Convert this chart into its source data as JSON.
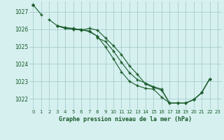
{
  "title": "Graphe pression niveau de la mer (hPa)",
  "background_color": "#d6f0f0",
  "grid_color": "#aecfcf",
  "line_color": "#1a5c2a",
  "xlim": [
    -0.5,
    23.5
  ],
  "ylim": [
    1021.4,
    1027.6
  ],
  "yticks": [
    1022,
    1023,
    1024,
    1025,
    1026,
    1027
  ],
  "xticks": [
    0,
    1,
    2,
    3,
    4,
    5,
    6,
    7,
    8,
    9,
    10,
    11,
    12,
    13,
    14,
    15,
    16,
    17,
    18,
    19,
    20,
    21,
    22,
    23
  ],
  "series": [
    [
      1027.4,
      1026.85,
      null,
      null,
      null,
      null,
      null,
      null,
      null,
      null,
      null,
      null,
      null,
      null,
      null,
      null,
      null,
      null,
      null,
      null,
      null,
      null,
      null,
      null
    ],
    [
      1027.4,
      null,
      null,
      1026.2,
      1026.05,
      1026.0,
      1026.0,
      1025.85,
      1025.6,
      1025.0,
      1024.3,
      1023.55,
      1023.0,
      1022.75,
      1022.6,
      1022.55,
      1022.1,
      1021.75,
      1021.75,
      1021.75,
      1021.95,
      1022.35,
      1023.15,
      null
    ],
    [
      1027.4,
      null,
      null,
      1026.2,
      1026.1,
      1026.05,
      1025.95,
      1026.05,
      1025.95,
      1025.5,
      1025.05,
      1024.55,
      1023.9,
      1023.4,
      1022.85,
      1022.65,
      1022.5,
      1021.75,
      1021.75,
      1021.75,
      1021.95,
      1022.35,
      1023.15,
      null
    ],
    [
      1027.4,
      null,
      1026.55,
      1026.2,
      1026.05,
      1026.0,
      1025.95,
      1025.9,
      1025.6,
      null,
      null,
      null,
      null,
      null,
      null,
      null,
      null,
      null,
      null,
      null,
      null,
      null,
      null,
      null
    ],
    [
      null,
      null,
      null,
      null,
      null,
      null,
      null,
      null,
      1025.5,
      1025.3,
      1024.75,
      1024.1,
      1023.5,
      1023.1,
      1022.9,
      1022.7,
      1022.55,
      1021.75,
      1021.75,
      1021.75,
      1021.95,
      1022.35,
      1023.15,
      null
    ]
  ]
}
